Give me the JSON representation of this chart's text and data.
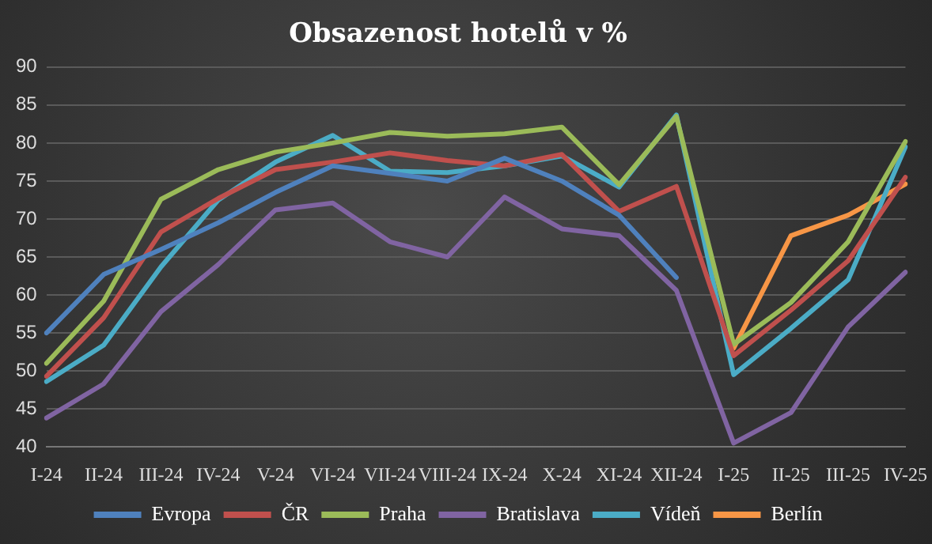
{
  "chart_data": {
    "type": "line",
    "title": "Obsazenost hotelů v %",
    "categories": [
      "I-24",
      "II-24",
      "III-24",
      "IV-24",
      "V-24",
      "VI-24",
      "VII-24",
      "VIII-24",
      "IX-24",
      "X-24",
      "XI-24",
      "XII-24",
      "I-25",
      "II-25",
      "III-25",
      "IV-25"
    ],
    "series": [
      {
        "name": "Evropa",
        "color": "#4f81bd",
        "values": [
          55,
          62.7,
          66,
          69.5,
          73.5,
          77,
          76,
          75,
          78,
          75,
          70.5,
          62.3,
          null,
          null,
          null,
          null
        ]
      },
      {
        "name": "ČR",
        "color": "#c0504d",
        "values": [
          49.3,
          57,
          68.3,
          72.7,
          76.5,
          77.5,
          78.7,
          77.7,
          77,
          78.5,
          71,
          74.3,
          52,
          58,
          64.5,
          75.5
        ]
      },
      {
        "name": "Praha",
        "color": "#9bbb59",
        "values": [
          51,
          59.2,
          72.6,
          76.5,
          78.8,
          80,
          81.4,
          80.9,
          81.2,
          82.1,
          74.5,
          83.5,
          53.5,
          59,
          67,
          80.2
        ]
      },
      {
        "name": "Bratislava",
        "color": "#8064a2",
        "values": [
          43.8,
          48.3,
          57.8,
          64,
          71.2,
          72.1,
          67,
          65,
          72.9,
          68.7,
          67.8,
          60.6,
          40.5,
          44.5,
          55.8,
          63
        ]
      },
      {
        "name": "Vídeň",
        "color": "#4bacc6",
        "values": [
          48.6,
          53.4,
          63.7,
          72.5,
          77.5,
          81,
          76.3,
          76.1,
          77,
          78.3,
          74.2,
          83.7,
          49.5,
          55.6,
          62,
          79.5
        ]
      },
      {
        "name": "Berlín",
        "color": "#f79646",
        "values": [
          null,
          null,
          null,
          null,
          null,
          null,
          null,
          null,
          null,
          null,
          null,
          null,
          53,
          67.8,
          70.5,
          74.6
        ]
      }
    ],
    "ylim": [
      40,
      90
    ],
    "yticks": [
      40,
      45,
      50,
      55,
      60,
      65,
      70,
      75,
      80,
      85,
      90
    ],
    "grid": "y",
    "legend": "bottom",
    "marker": "none"
  }
}
